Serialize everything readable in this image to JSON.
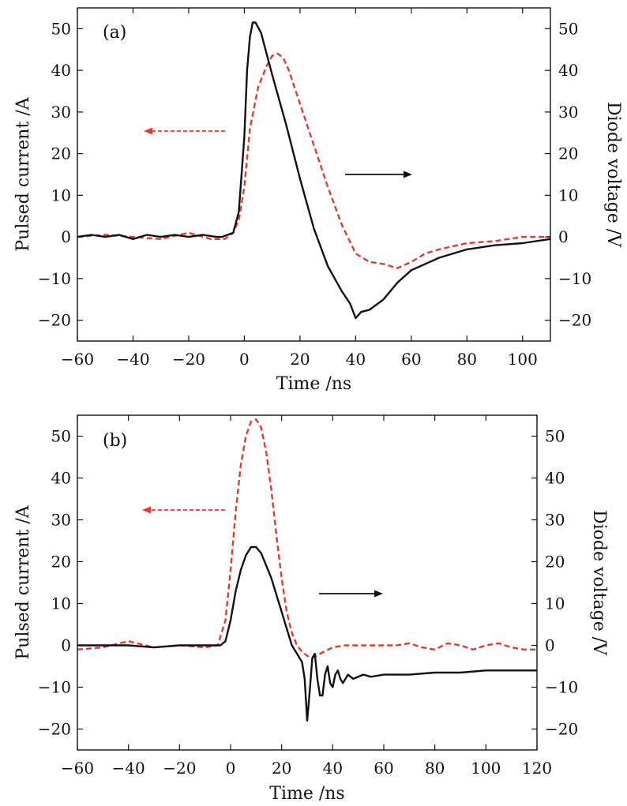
{
  "chart_data": [
    {
      "type": "line",
      "panel_label": "(a)",
      "xlabel": "Time /ns",
      "ylabel_left": "Pulsed current /A",
      "ylabel_right": "Diode voltage /V",
      "xlim": [
        -60,
        110
      ],
      "ylim_left": [
        -25,
        55
      ],
      "ylim_right": [
        -25,
        55
      ],
      "x_ticks": [
        -60,
        -40,
        -20,
        0,
        20,
        40,
        60,
        80,
        100
      ],
      "x_tick_labels": [
        "−60",
        "−40",
        "−20",
        "0",
        "20",
        "40",
        "60",
        "80",
        "100"
      ],
      "y_ticks": [
        -20,
        -10,
        0,
        10,
        20,
        30,
        40,
        50
      ],
      "y_tick_labels": [
        "−20",
        "−10",
        "0",
        "10",
        "20",
        "30",
        "40",
        "50"
      ],
      "series": [
        {
          "name": "Pulsed current",
          "axis": "left",
          "color": "#e8382e",
          "style": "dashed",
          "x": [
            -60,
            -50,
            -40,
            -30,
            -20,
            -12,
            -7,
            -4,
            -2,
            0,
            2,
            5,
            8,
            10,
            12,
            14,
            16,
            20,
            25,
            30,
            35,
            40,
            45,
            50,
            55,
            60,
            65,
            70,
            80,
            90,
            100,
            110
          ],
          "y": [
            0,
            0.5,
            0,
            -0.5,
            1,
            -0.5,
            -0.5,
            1,
            4,
            12,
            26,
            36,
            41,
            43.5,
            44,
            43,
            40,
            32,
            22,
            12,
            3,
            -4,
            -6,
            -6.5,
            -7.5,
            -6,
            -4,
            -3,
            -1.5,
            -1,
            0,
            0
          ]
        },
        {
          "name": "Diode voltage",
          "axis": "right",
          "color": "#111111",
          "style": "solid",
          "x": [
            -60,
            -55,
            -50,
            -45,
            -40,
            -35,
            -30,
            -25,
            -20,
            -15,
            -10,
            -8,
            -6,
            -4,
            -2,
            0,
            1,
            2,
            3,
            4,
            6,
            8,
            10,
            15,
            20,
            25,
            30,
            35,
            38,
            40,
            42,
            45,
            50,
            55,
            60,
            70,
            80,
            90,
            100,
            110
          ],
          "y": [
            0,
            0.5,
            0,
            0.5,
            -0.5,
            0.5,
            0,
            0.5,
            0,
            0.5,
            0,
            0,
            0.5,
            1,
            6,
            24,
            40,
            48,
            51.5,
            51.5,
            49,
            44,
            39,
            27,
            14,
            2,
            -7,
            -13,
            -16,
            -19.5,
            -18,
            -17.5,
            -15,
            -11,
            -8,
            -5,
            -3,
            -2,
            -1.5,
            -0.5
          ]
        }
      ],
      "annotations": [
        {
          "type": "arrow",
          "direction": "left",
          "style": "dashed",
          "color": "#e8382e",
          "meaning": "Pulsed current plotted on left axis"
        },
        {
          "type": "arrow",
          "direction": "right",
          "style": "solid",
          "color": "#111111",
          "meaning": "Diode voltage plotted on right axis"
        }
      ]
    },
    {
      "type": "line",
      "panel_label": "(b)",
      "xlabel": "Time /ns",
      "ylabel_left": "Pulsed current /A",
      "ylabel_right": "Diode voltage /V",
      "xlim": [
        -60,
        120
      ],
      "ylim_left": [
        -25,
        55
      ],
      "ylim_right": [
        -25,
        55
      ],
      "x_ticks": [
        -60,
        -40,
        -20,
        0,
        20,
        40,
        60,
        80,
        100,
        120
      ],
      "x_tick_labels": [
        "−60",
        "−40",
        "−20",
        "0",
        "20",
        "40",
        "60",
        "80",
        "100",
        "120"
      ],
      "y_ticks": [
        -20,
        -10,
        0,
        10,
        20,
        30,
        40,
        50
      ],
      "y_tick_labels": [
        "−20",
        "−10",
        "0",
        "10",
        "20",
        "30",
        "40",
        "50"
      ],
      "series": [
        {
          "name": "Pulsed current",
          "axis": "left",
          "color": "#e8382e",
          "style": "dashed",
          "x": [
            -60,
            -50,
            -40,
            -30,
            -20,
            -10,
            -5,
            -2,
            0,
            2,
            4,
            6,
            8,
            10,
            12,
            14,
            16,
            18,
            20,
            22,
            24,
            26,
            28,
            30,
            32,
            35,
            40,
            45,
            50,
            55,
            60,
            65,
            70,
            75,
            80,
            85,
            90,
            95,
            100,
            105,
            110,
            115,
            120
          ],
          "y": [
            -1,
            -0.5,
            1,
            -0.5,
            0,
            -0.5,
            0,
            6,
            18,
            32,
            43,
            50,
            53.5,
            54,
            52,
            46,
            37,
            26,
            16,
            8,
            3,
            0,
            -1.5,
            -2.5,
            -3,
            -2,
            -0.5,
            0,
            0,
            0,
            0,
            0,
            0.5,
            -0.5,
            -1,
            0.5,
            0,
            -1,
            0,
            0.5,
            -0.5,
            -1,
            -1
          ]
        },
        {
          "name": "Diode voltage",
          "axis": "right",
          "color": "#111111",
          "style": "solid",
          "x": [
            -60,
            -50,
            -40,
            -30,
            -20,
            -10,
            -4,
            -2,
            0,
            2,
            4,
            6,
            8,
            10,
            12,
            14,
            16,
            18,
            20,
            22,
            24,
            26,
            28,
            29,
            30,
            31,
            32,
            33,
            34,
            35,
            36,
            37,
            38,
            39,
            40,
            41,
            42,
            43,
            44,
            45,
            46,
            47,
            48,
            50,
            52,
            55,
            60,
            70,
            80,
            90,
            100,
            110,
            120
          ],
          "y": [
            0,
            0,
            0,
            -0.5,
            0,
            0,
            0,
            1,
            6,
            13,
            18,
            21.5,
            23.5,
            23.5,
            22,
            19,
            16,
            12,
            8,
            4,
            0,
            -2,
            -4,
            -8,
            -18,
            -11,
            -3,
            -2,
            -8,
            -12,
            -12,
            -7,
            -5,
            -9,
            -10,
            -7,
            -6,
            -8,
            -9,
            -8,
            -7,
            -7.5,
            -8,
            -7.5,
            -7,
            -7.5,
            -7,
            -7,
            -6.5,
            -6.5,
            -6,
            -6,
            -6
          ]
        }
      ],
      "annotations": [
        {
          "type": "arrow",
          "direction": "left",
          "style": "dashed",
          "color": "#e8382e",
          "meaning": "Pulsed current plotted on left axis"
        },
        {
          "type": "arrow",
          "direction": "right",
          "style": "solid",
          "color": "#111111",
          "meaning": "Diode voltage plotted on right axis"
        }
      ]
    }
  ]
}
